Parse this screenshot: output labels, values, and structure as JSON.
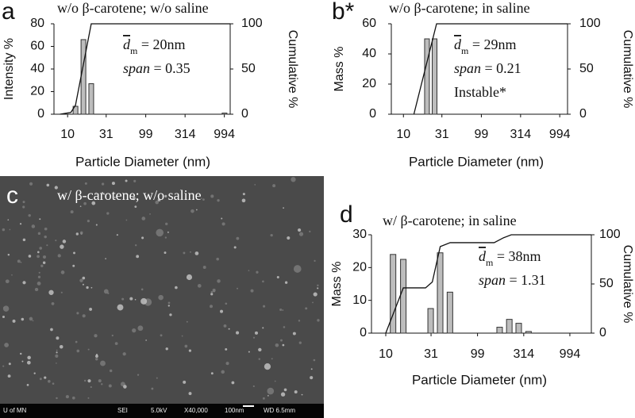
{
  "chart_data": [
    {
      "type": "bar",
      "panel_label": "a",
      "title": "w/o β-carotene; w/o saline",
      "xlabel": "Particle Diameter (nm)",
      "ylabel": "Intensity %",
      "y2label": "Cumulative %",
      "xscale": "log",
      "xlim": [
        6.7,
        1180
      ],
      "xticks": [
        10,
        31,
        99,
        314,
        994
      ],
      "ylim": [
        0,
        80
      ],
      "yticks": [
        0,
        20,
        40,
        60,
        80
      ],
      "y2lim": [
        0,
        100
      ],
      "y2ticks": [
        0,
        50,
        100
      ],
      "color": "#bdbdbd",
      "x": [
        12.6,
        15.9,
        20,
        1000
      ],
      "values": [
        7,
        66,
        27,
        1
      ],
      "line": {
        "axis": "y2",
        "color": "#111111",
        "x": [
          8,
          11,
          12.6,
          20,
          1180
        ],
        "values": [
          0,
          2,
          10,
          100,
          100
        ]
      },
      "annotations": [
        {
          "symbol": "d",
          "subscript": "m",
          "text": " = 20nm"
        },
        {
          "symbol": "span",
          "text": " = 0.35"
        }
      ]
    },
    {
      "type": "bar",
      "panel_label": "b*",
      "title": "w/o β-carotene; in saline",
      "xlabel": "Particle Diameter (nm)",
      "ylabel": "Mass %",
      "y2label": "Cumulative %",
      "xscale": "log",
      "xlim": [
        7,
        1250
      ],
      "xticks": [
        10,
        31,
        99,
        314,
        994
      ],
      "ylim": [
        0,
        60
      ],
      "yticks": [
        0,
        20,
        40,
        60
      ],
      "y2lim": [
        0,
        100
      ],
      "y2ticks": [
        0,
        50,
        100
      ],
      "color": "#bdbdbd",
      "x": [
        20,
        25
      ],
      "values": [
        50,
        50
      ],
      "line": {
        "axis": "y2",
        "color": "#111111",
        "x": [
          13.6,
          26.5,
          1250
        ],
        "values": [
          0,
          100,
          100
        ]
      },
      "annotations": [
        {
          "symbol": "d",
          "subscript": "m",
          "text": " = 29nm"
        },
        {
          "symbol": "span",
          "text": " = 0.21"
        },
        {
          "text": "Instable*"
        }
      ]
    },
    {
      "type": "bar",
      "panel_label": "d",
      "title": "w/ β-carotene; in saline",
      "xlabel": "Particle Diameter (nm)",
      "ylabel": "Mass %",
      "y2label": "Cumulative %",
      "xscale": "log",
      "xlim": [
        7,
        1700
      ],
      "xticks": [
        10,
        31,
        99,
        314,
        994
      ],
      "ylim": [
        0,
        30
      ],
      "yticks": [
        0,
        10,
        20,
        30
      ],
      "y2lim": [
        0,
        100
      ],
      "y2ticks": [
        0,
        50,
        100
      ],
      "color": "#bdbdbd",
      "x": [
        12,
        15.5,
        30.7,
        38.9,
        49.7,
        172,
        219,
        277,
        354
      ],
      "values": [
        24,
        22.5,
        7.5,
        24.5,
        12.5,
        1.8,
        4.2,
        3,
        0.5
      ],
      "line": {
        "axis": "y2",
        "color": "#111111",
        "x": [
          10,
          15.5,
          27,
          32,
          39,
          50,
          150,
          190,
          230,
          1700
        ],
        "values": [
          0,
          46,
          46,
          52,
          88,
          92,
          92,
          97,
          100,
          100
        ]
      },
      "annotations": [
        {
          "symbol": "d",
          "subscript": "m",
          "text": " = 38nm"
        },
        {
          "symbol": "span",
          "text": " = 1.31"
        }
      ]
    }
  ],
  "image_panel": {
    "panel_label": "c",
    "title": "w/ β-carotene; w/o saline",
    "footer": [
      "U of MN",
      "SEI",
      "5.0kV",
      "X40,000",
      "100nm",
      "WD 6.5mm"
    ]
  }
}
